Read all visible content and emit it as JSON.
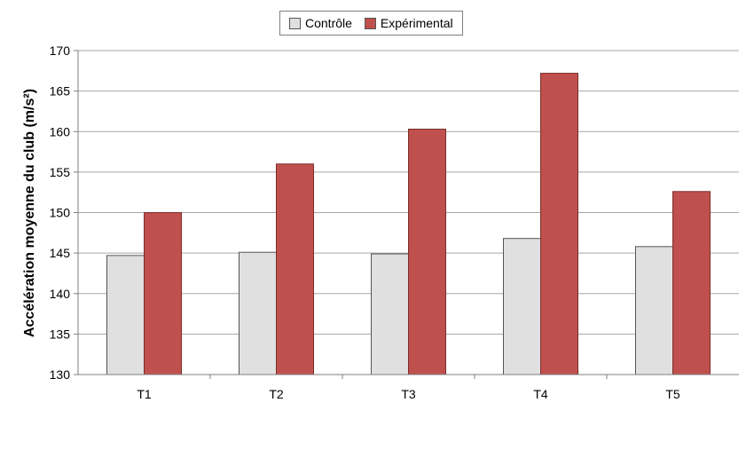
{
  "chart_data": {
    "type": "bar",
    "title": "",
    "xlabel": "",
    "ylabel": "Accélération moyenne du club (m/s²)",
    "categories": [
      "T1",
      "T2",
      "T3",
      "T4",
      "T5"
    ],
    "series": [
      {
        "name": "Contrôle",
        "color": "#e0e0e0",
        "values": [
          144.7,
          145.1,
          144.9,
          146.8,
          145.8
        ]
      },
      {
        "name": "Expérimental",
        "color": "#c0504d",
        "values": [
          150.0,
          156.0,
          160.3,
          167.2,
          152.6
        ]
      }
    ],
    "ylim": [
      130,
      170
    ],
    "yticks": [
      130,
      135,
      140,
      145,
      150,
      155,
      160,
      165,
      170
    ],
    "grid": true,
    "legend_position": "top-center"
  }
}
